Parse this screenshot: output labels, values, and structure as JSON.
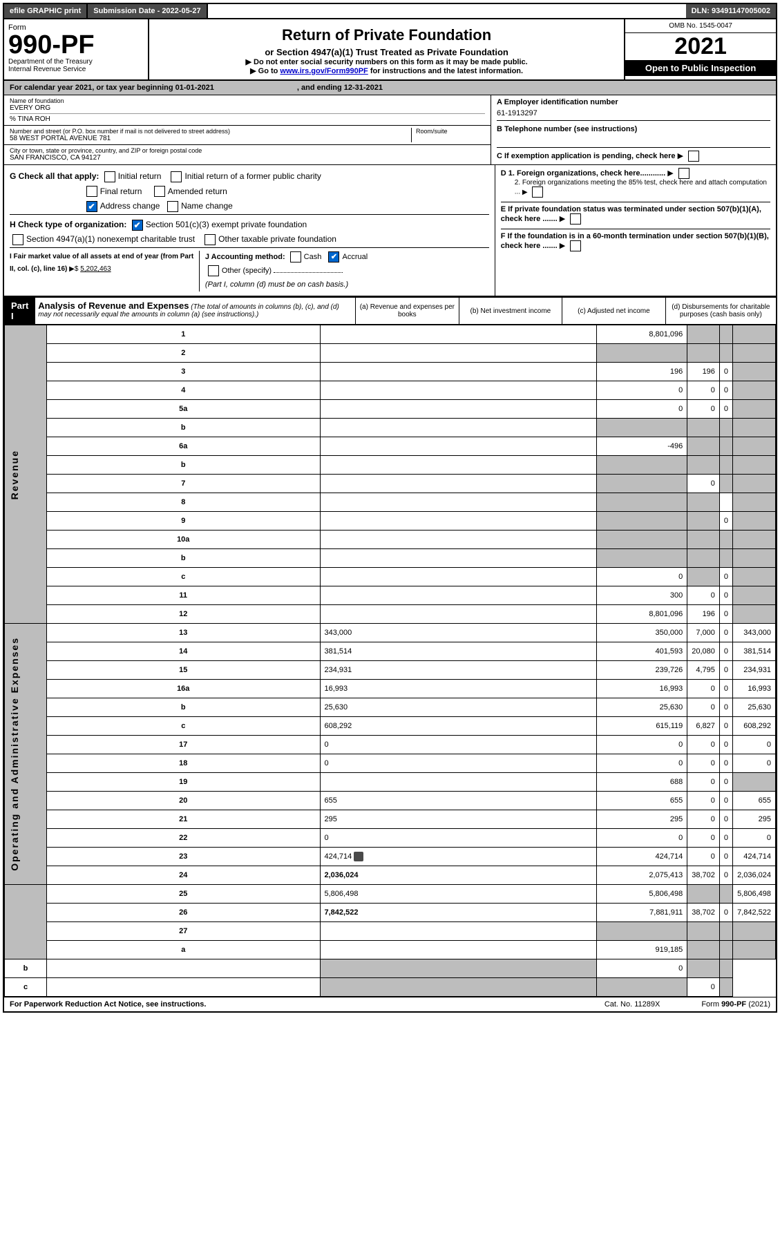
{
  "toprow": {
    "efile": "efile GRAPHIC print",
    "subdate_label": "Submission Date - 2022-05-27",
    "dln": "DLN: 93491147005002"
  },
  "head": {
    "form_label": "Form",
    "form_no": "990-PF",
    "dept1": "Department of the Treasury",
    "dept2": "Internal Revenue Service",
    "title": "Return of Private Foundation",
    "subtitle": "or Section 4947(a)(1) Trust Treated as Private Foundation",
    "warn": "▶ Do not enter social security numbers on this form as it may be made public.",
    "goto_pre": "▶ Go to ",
    "goto_link": "www.irs.gov/Form990PF",
    "goto_post": " for instructions and the latest information.",
    "omb": "OMB No. 1545-0047",
    "year": "2021",
    "open": "Open to Public Inspection"
  },
  "cal": {
    "text": "For calendar year 2021, or tax year beginning 01-01-2021",
    "end": ", and ending 12-31-2021"
  },
  "name": {
    "lbl": "Name of foundation",
    "val": "EVERY ORG",
    "care": "% TINA ROH"
  },
  "addr": {
    "lbl": "Number and street (or P.O. box number if mail is not delivered to street address)",
    "val": "58 WEST PORTAL AVENUE 781",
    "room_lbl": "Room/suite"
  },
  "city": {
    "lbl": "City or town, state or province, country, and ZIP or foreign postal code",
    "val": "SAN FRANCISCO, CA  94127"
  },
  "ein": {
    "lbl": "A Employer identification number",
    "val": "61-1913297"
  },
  "tel": {
    "lbl": "B Telephone number (see instructions)"
  },
  "c_lbl": "C If exemption application is pending, check here",
  "g": {
    "lbl": "G Check all that apply:",
    "initial": "Initial return",
    "initial_former": "Initial return of a former public charity",
    "final": "Final return",
    "amended": "Amended return",
    "address": "Address change",
    "name": "Name change"
  },
  "h": {
    "lbl": "H Check type of organization:",
    "s501": "Section 501(c)(3) exempt private foundation",
    "s4947": "Section 4947(a)(1) nonexempt charitable trust",
    "other": "Other taxable private foundation"
  },
  "i": {
    "lbl": "I Fair market value of all assets at end of year (from Part II, col. (c), line 16)",
    "val": "5,202,463"
  },
  "j": {
    "lbl": "J Accounting method:",
    "cash": "Cash",
    "accrual": "Accrual",
    "other": "Other (specify)",
    "note": "(Part I, column (d) must be on cash basis.)"
  },
  "d": {
    "d1": "D 1. Foreign organizations, check here............",
    "d2": "2. Foreign organizations meeting the 85% test, check here and attach computation ..."
  },
  "e_lbl": "E  If private foundation status was terminated under section 507(b)(1)(A), check here .......",
  "f_lbl": "F  If the foundation is in a 60-month termination under section 507(b)(1)(B), check here .......",
  "part1": {
    "label": "Part I",
    "title": "Analysis of Revenue and Expenses",
    "desc": "(The total of amounts in columns (b), (c), and (d) may not necessarily equal the amounts in column (a) (see instructions).)",
    "col_a": "(a)  Revenue and expenses per books",
    "col_b": "(b)  Net investment income",
    "col_c": "(c)  Adjusted net income",
    "col_d": "(d)  Disbursements for charitable purposes (cash basis only)"
  },
  "side_rev": "Revenue",
  "side_exp": "Operating and Administrative Expenses",
  "rows": [
    {
      "n": "1",
      "d": "",
      "a": "8,801,096",
      "b": "",
      "c": "",
      "gb": true,
      "gc": true,
      "gd": true
    },
    {
      "n": "2",
      "d": "",
      "a": "",
      "b": "",
      "c": "",
      "ga": true,
      "gb": true,
      "gc": true,
      "gd": true
    },
    {
      "n": "3",
      "d": "",
      "a": "196",
      "b": "196",
      "c": "0",
      "gd": true
    },
    {
      "n": "4",
      "d": "",
      "a": "0",
      "b": "0",
      "c": "0",
      "gd": true
    },
    {
      "n": "5a",
      "d": "",
      "a": "0",
      "b": "0",
      "c": "0",
      "gd": true
    },
    {
      "n": "b",
      "d": "",
      "a": "",
      "b": "",
      "c": "",
      "ga": true,
      "gb": true,
      "gc": true,
      "gd": true
    },
    {
      "n": "6a",
      "d": "",
      "a": "-496",
      "b": "",
      "c": "",
      "gb": true,
      "gc": true,
      "gd": true
    },
    {
      "n": "b",
      "d": "",
      "a": "",
      "b": "",
      "c": "",
      "ga": true,
      "gb": true,
      "gc": true,
      "gd": true
    },
    {
      "n": "7",
      "d": "",
      "a": "",
      "b": "0",
      "c": "",
      "ga": true,
      "gc": true,
      "gd": true
    },
    {
      "n": "8",
      "d": "",
      "a": "",
      "b": "",
      "c": "",
      "ga": true,
      "gb": true,
      "gd": true
    },
    {
      "n": "9",
      "d": "",
      "a": "",
      "b": "",
      "c": "0",
      "ga": true,
      "gb": true,
      "gd": true
    },
    {
      "n": "10a",
      "d": "",
      "a": "",
      "b": "",
      "c": "",
      "ga": true,
      "gb": true,
      "gc": true,
      "gd": true
    },
    {
      "n": "b",
      "d": "",
      "a": "",
      "b": "",
      "c": "",
      "ga": true,
      "gb": true,
      "gc": true,
      "gd": true
    },
    {
      "n": "c",
      "d": "",
      "a": "0",
      "b": "",
      "c": "0",
      "gb": true,
      "gd": true
    },
    {
      "n": "11",
      "d": "",
      "a": "300",
      "b": "0",
      "c": "0",
      "gd": true
    },
    {
      "n": "12",
      "d": "",
      "bold": true,
      "a": "8,801,096",
      "b": "196",
      "c": "0",
      "gd": true
    },
    {
      "n": "13",
      "d": "343,000",
      "a": "350,000",
      "b": "7,000",
      "c": "0"
    },
    {
      "n": "14",
      "d": "381,514",
      "a": "401,593",
      "b": "20,080",
      "c": "0"
    },
    {
      "n": "15",
      "d": "234,931",
      "a": "239,726",
      "b": "4,795",
      "c": "0"
    },
    {
      "n": "16a",
      "d": "16,993",
      "a": "16,993",
      "b": "0",
      "c": "0"
    },
    {
      "n": "b",
      "d": "25,630",
      "a": "25,630",
      "b": "0",
      "c": "0"
    },
    {
      "n": "c",
      "d": "608,292",
      "a": "615,119",
      "b": "6,827",
      "c": "0"
    },
    {
      "n": "17",
      "d": "0",
      "a": "0",
      "b": "0",
      "c": "0"
    },
    {
      "n": "18",
      "d": "0",
      "a": "0",
      "b": "0",
      "c": "0"
    },
    {
      "n": "19",
      "d": "",
      "a": "688",
      "b": "0",
      "c": "0",
      "gd": true
    },
    {
      "n": "20",
      "d": "655",
      "a": "655",
      "b": "0",
      "c": "0"
    },
    {
      "n": "21",
      "d": "295",
      "a": "295",
      "b": "0",
      "c": "0"
    },
    {
      "n": "22",
      "d": "0",
      "a": "0",
      "b": "0",
      "c": "0"
    },
    {
      "n": "23",
      "d": "424,714",
      "icon": true,
      "a": "424,714",
      "b": "0",
      "c": "0"
    },
    {
      "n": "24",
      "d": "2,036,024",
      "bold": true,
      "a": "2,075,413",
      "b": "38,702",
      "c": "0"
    },
    {
      "n": "25",
      "d": "5,806,498",
      "a": "5,806,498",
      "b": "",
      "c": "",
      "gb": true,
      "gc": true
    },
    {
      "n": "26",
      "d": "7,842,522",
      "bold": true,
      "a": "7,881,911",
      "b": "38,702",
      "c": "0"
    },
    {
      "n": "27",
      "d": "",
      "a": "",
      "b": "",
      "c": "",
      "ga": true,
      "gb": true,
      "gc": true,
      "gd": true
    },
    {
      "n": "a",
      "d": "",
      "bold": true,
      "a": "919,185",
      "b": "",
      "c": "",
      "gb": true,
      "gc": true,
      "gd": true
    },
    {
      "n": "b",
      "d": "",
      "bold": true,
      "a": "",
      "b": "0",
      "c": "",
      "ga": true,
      "gc": true,
      "gd": true
    },
    {
      "n": "c",
      "d": "",
      "bold": true,
      "a": "",
      "b": "",
      "c": "0",
      "ga": true,
      "gb": true,
      "gd": true
    }
  ],
  "foot": {
    "left": "For Paperwork Reduction Act Notice, see instructions.",
    "mid": "Cat. No. 11289X",
    "right": "Form 990-PF (2021)"
  }
}
